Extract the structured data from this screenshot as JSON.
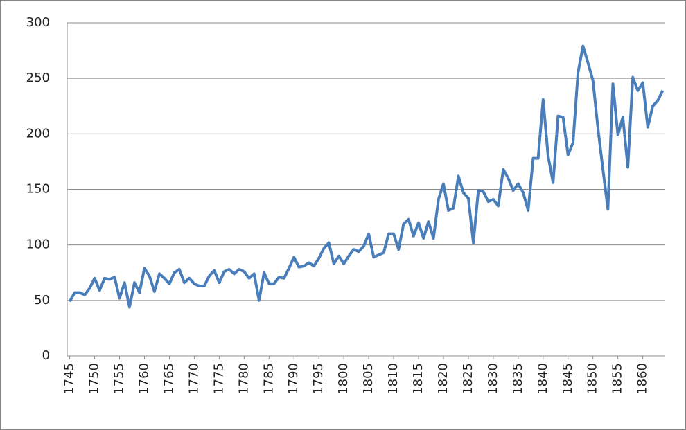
{
  "chart_data": {
    "type": "line",
    "x": [
      1745,
      1746,
      1747,
      1748,
      1749,
      1750,
      1751,
      1752,
      1753,
      1754,
      1755,
      1756,
      1757,
      1758,
      1759,
      1760,
      1761,
      1762,
      1763,
      1764,
      1765,
      1766,
      1767,
      1768,
      1769,
      1770,
      1771,
      1772,
      1773,
      1774,
      1775,
      1776,
      1777,
      1778,
      1779,
      1780,
      1781,
      1782,
      1783,
      1784,
      1785,
      1786,
      1787,
      1788,
      1789,
      1790,
      1791,
      1792,
      1793,
      1794,
      1795,
      1796,
      1797,
      1798,
      1799,
      1800,
      1801,
      1802,
      1803,
      1804,
      1805,
      1806,
      1807,
      1808,
      1809,
      1810,
      1811,
      1812,
      1813,
      1814,
      1815,
      1816,
      1817,
      1818,
      1819,
      1820,
      1821,
      1822,
      1823,
      1824,
      1825,
      1826,
      1827,
      1828,
      1829,
      1830,
      1831,
      1832,
      1833,
      1834,
      1835,
      1836,
      1837,
      1838,
      1839,
      1840,
      1841,
      1842,
      1843,
      1844,
      1845,
      1846,
      1847,
      1848,
      1849,
      1850,
      1851,
      1852,
      1853,
      1854,
      1855,
      1856,
      1857,
      1858,
      1859,
      1860,
      1861,
      1862,
      1863,
      1864
    ],
    "series": [
      {
        "color": "#4a7ebb",
        "values": [
          49,
          57,
          57,
          55,
          61,
          70,
          59,
          70,
          69,
          71,
          52,
          66,
          44,
          66,
          57,
          79,
          72,
          58,
          74,
          70,
          65,
          75,
          78,
          66,
          70,
          65,
          63,
          63,
          72,
          77,
          66,
          76,
          78,
          74,
          78,
          76,
          70,
          74,
          50,
          75,
          65,
          65,
          71,
          70,
          79,
          89,
          80,
          81,
          84,
          81,
          88,
          97,
          102,
          83,
          90,
          83,
          90,
          96,
          94,
          99,
          110,
          89,
          91,
          93,
          110,
          110,
          96,
          119,
          123,
          108,
          120,
          106,
          121,
          106,
          141,
          155,
          131,
          133,
          162,
          147,
          142,
          102,
          149,
          148,
          139,
          141,
          135,
          168,
          160,
          149,
          155,
          147,
          131,
          178,
          178,
          231,
          180,
          156,
          216,
          215,
          181,
          192,
          255,
          279,
          264,
          248,
          205,
          168,
          132,
          245,
          199,
          215,
          170,
          251,
          239,
          246,
          206,
          225,
          230,
          239
        ]
      }
    ],
    "xlim": [
      1744.5,
      1864.5
    ],
    "xticks": [
      1745,
      1750,
      1755,
      1760,
      1765,
      1770,
      1775,
      1780,
      1785,
      1790,
      1795,
      1800,
      1805,
      1810,
      1815,
      1820,
      1825,
      1830,
      1835,
      1840,
      1845,
      1850,
      1855,
      1860
    ],
    "ylim": [
      0,
      300
    ],
    "yticks": [
      0,
      50,
      100,
      150,
      200,
      250,
      300
    ],
    "grid": true
  }
}
